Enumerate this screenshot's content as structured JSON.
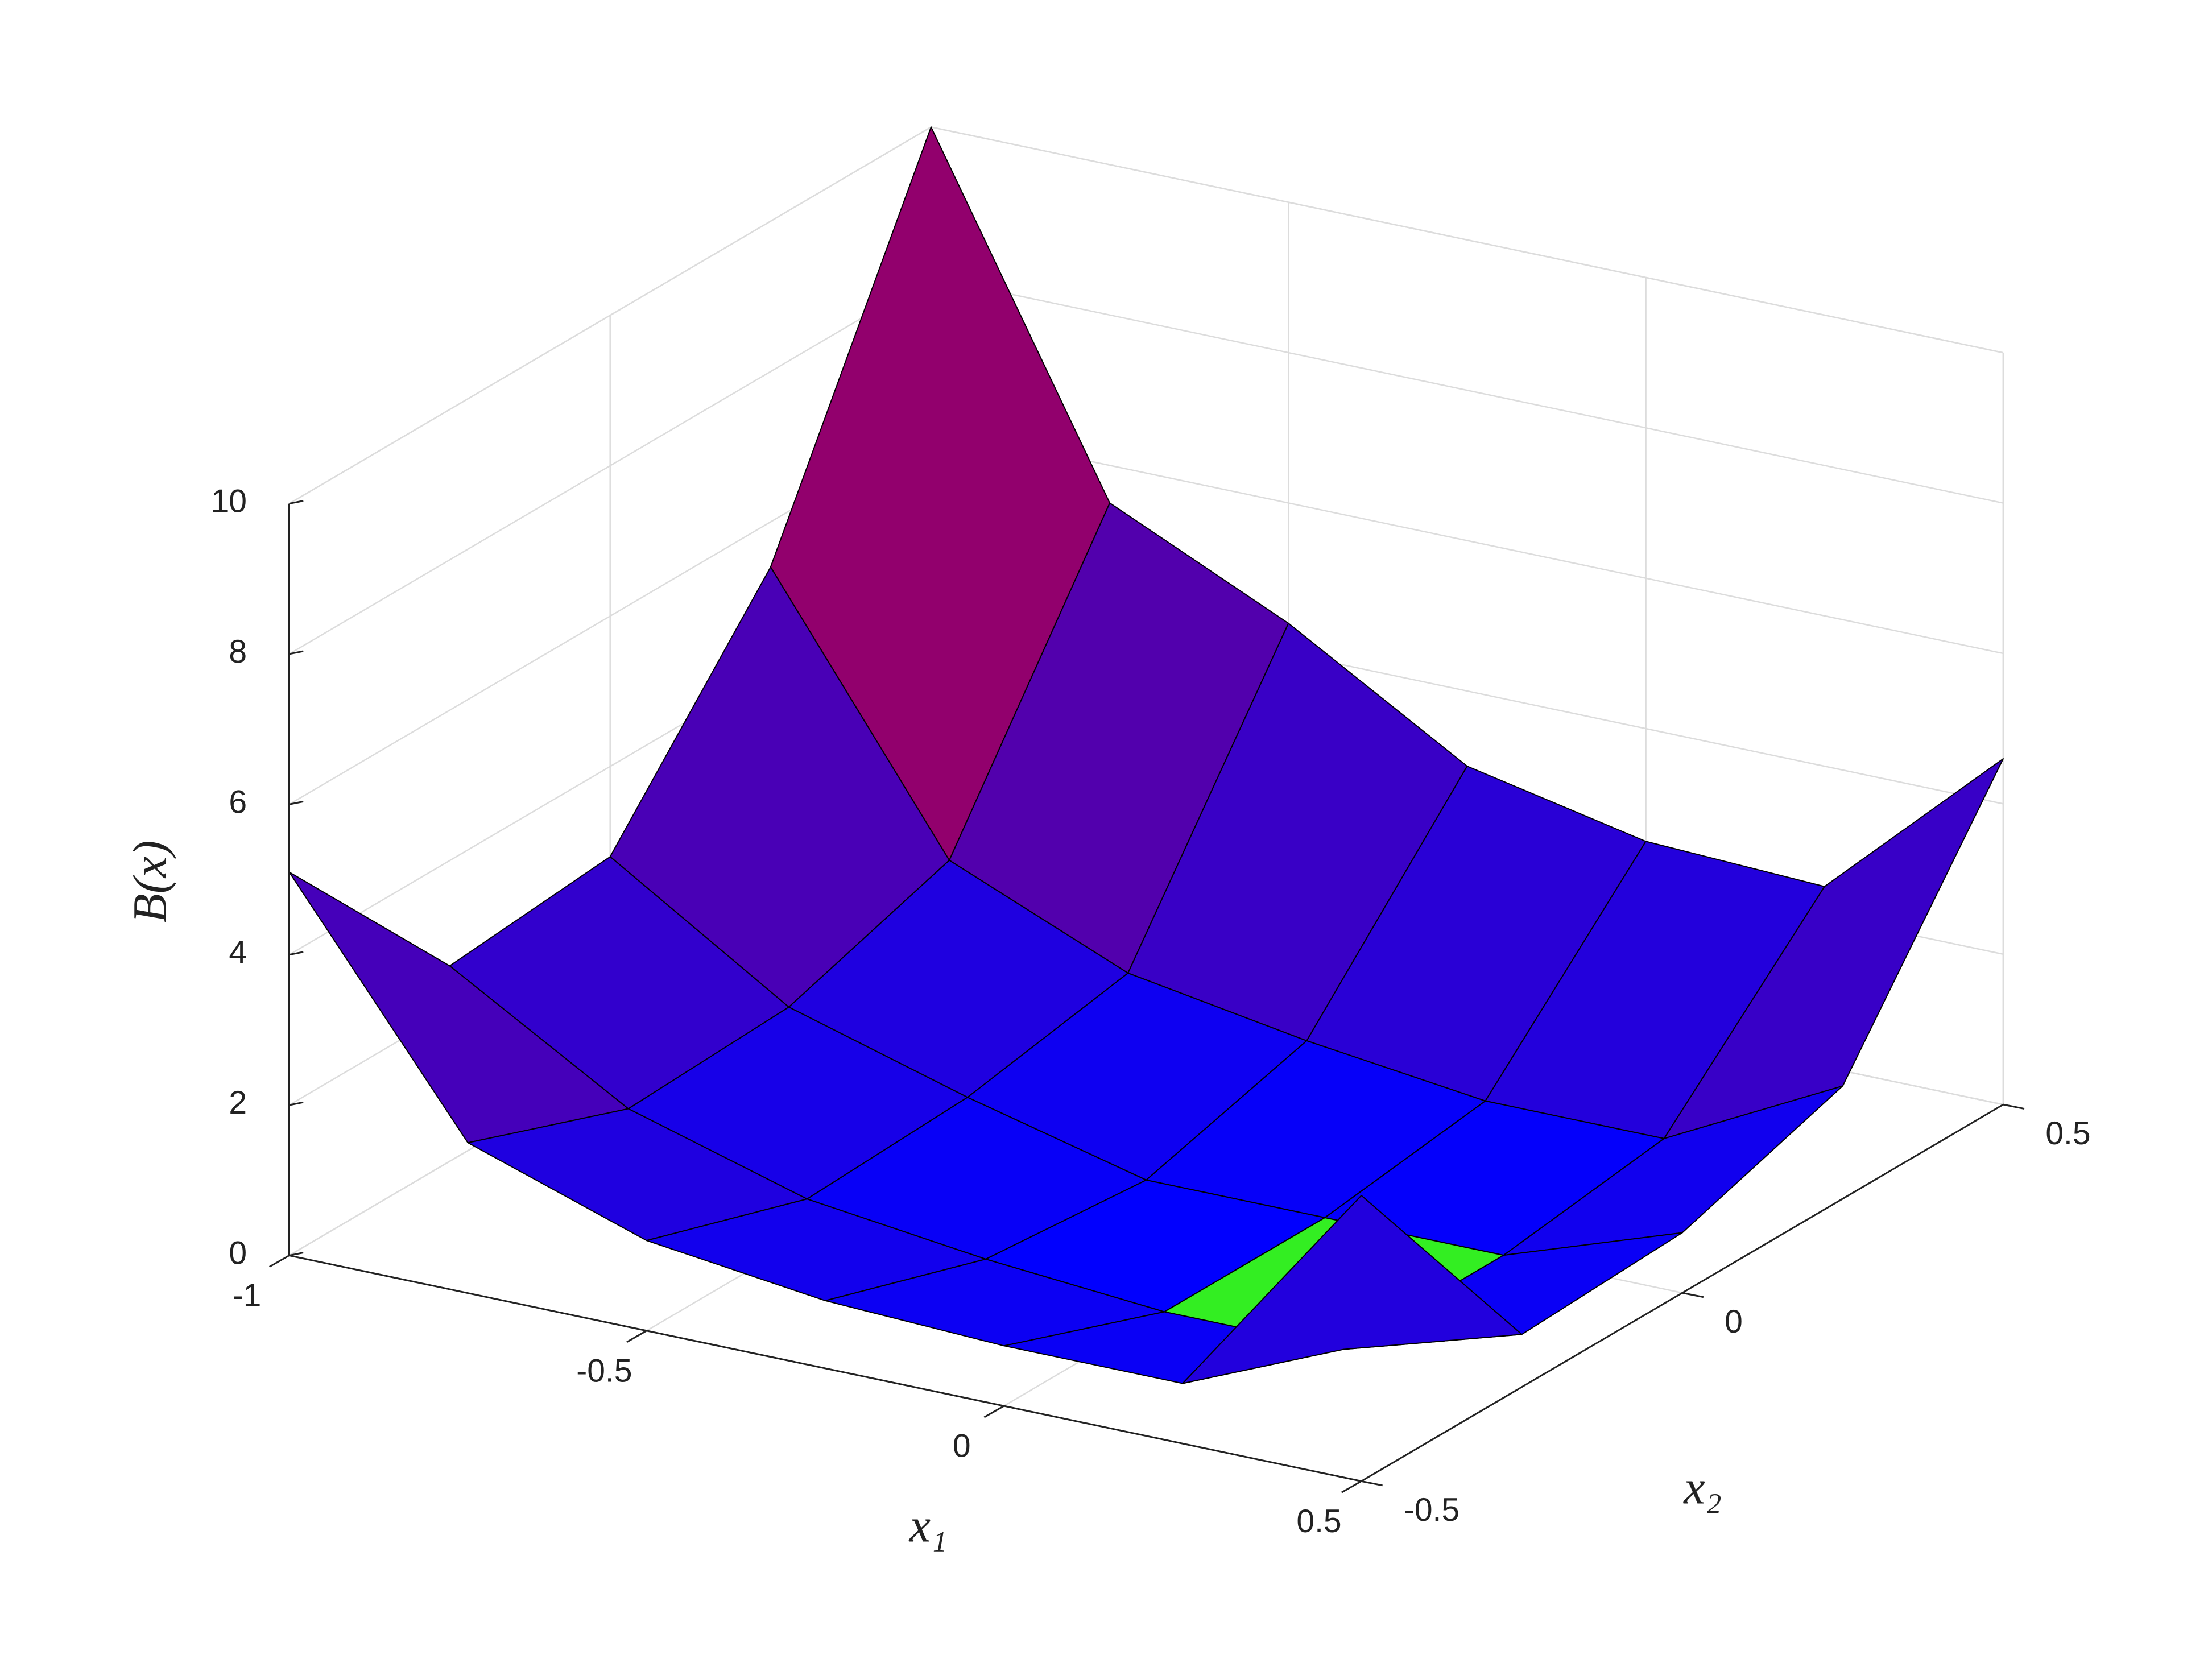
{
  "chart_data": {
    "type": "surface",
    "zlabel": "B(x)",
    "xlabel": "x₁",
    "ylabel": "x₂",
    "x1": [
      -1,
      -0.75,
      -0.5,
      -0.25,
      0,
      0.25,
      0.5
    ],
    "x2": [
      -0.5,
      -0.25,
      0,
      0.25,
      0.5
    ],
    "z": [
      [
        5.1,
        2.0,
        1.2,
        0.9,
        0.8,
        0.8,
        3.8
      ],
      [
        2.6,
        1.2,
        0.5,
        0.2,
        0,
        0,
        0.7
      ],
      [
        2.8,
        1.3,
        0.6,
        0,
        0,
        0,
        0.8
      ],
      [
        5.4,
        2.0,
        1.0,
        0.6,
        0.3,
        0.3,
        1.5
      ],
      [
        10,
        5.5,
        4.4,
        3.0,
        2.5,
        2.4,
        4.6
      ]
    ],
    "xlim": [
      -1,
      0.5
    ],
    "ylim": [
      -0.5,
      0.5
    ],
    "zlim": [
      0,
      10
    ],
    "xticks": [
      -1,
      -0.5,
      0,
      0.5
    ],
    "yticks": [
      -0.5,
      0,
      0.5
    ],
    "zticks": [
      0,
      2,
      4,
      6,
      8,
      10
    ],
    "grid": true,
    "colormap": [
      "#0000ff",
      "#ff0000"
    ],
    "zero_color": "#33ee22",
    "edge_color": "#000000"
  }
}
